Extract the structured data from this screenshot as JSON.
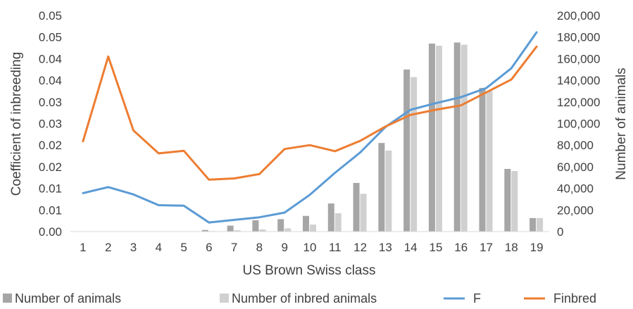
{
  "chart_data": {
    "type": "bar",
    "xlabel": "US Brown Swiss class",
    "ylabel_left": "Coefficient of inbreeding",
    "ylabel_right": "Number of animals",
    "categories": [
      "1",
      "2",
      "3",
      "4",
      "5",
      "6",
      "7",
      "8",
      "9",
      "10",
      "11",
      "12",
      "13",
      "14",
      "15",
      "16",
      "17",
      "18",
      "19"
    ],
    "left_axis": {
      "range": [
        0,
        0.05
      ],
      "tick_values": [
        0,
        0.005,
        0.01,
        0.015,
        0.02,
        0.025,
        0.03,
        0.035,
        0.04,
        0.045,
        0.05
      ],
      "tick_labels": [
        "0.00",
        "0.01",
        "0.01",
        "0.02",
        "0.02",
        "0.03",
        "0.03",
        "0.04",
        "0.04",
        "0.05",
        "0.05"
      ]
    },
    "right_axis": {
      "range": [
        0,
        200000
      ],
      "tick_values": [
        0,
        20000,
        40000,
        60000,
        80000,
        100000,
        120000,
        140000,
        160000,
        180000,
        200000
      ],
      "tick_labels": [
        "0",
        "20,000",
        "40,000",
        "60,000",
        "80,000",
        "100,000",
        "120,000",
        "140,000",
        "160,000",
        "180,000",
        "200,000"
      ]
    },
    "grid": false,
    "legend_position": "bottom",
    "series": [
      {
        "name": "Number of animals",
        "type": "bar",
        "axis": "right",
        "color": "#a6a6a6",
        "values": [
          300,
          0,
          0,
          200,
          200,
          1500,
          5500,
          10500,
          11500,
          14500,
          26000,
          45000,
          82000,
          150000,
          174000,
          175000,
          133000,
          58000,
          12500
        ]
      },
      {
        "name": "Number of inbred animals",
        "type": "bar",
        "axis": "right",
        "color": "#d0d0d0",
        "values": [
          100,
          0,
          0,
          100,
          100,
          500,
          1200,
          2000,
          3000,
          6500,
          17000,
          35000,
          75000,
          143000,
          172000,
          173000,
          130000,
          56000,
          12500
        ]
      },
      {
        "name": "F",
        "type": "line",
        "axis": "left",
        "color": "#5b9bd5",
        "values": [
          0.0089,
          0.0103,
          0.0086,
          0.0061,
          0.006,
          0.0021,
          0.0027,
          0.0033,
          0.0044,
          0.0085,
          0.0136,
          0.0183,
          0.0242,
          0.0282,
          0.0297,
          0.0311,
          0.0332,
          0.0378,
          0.0461
        ]
      },
      {
        "name": "Finbred",
        "type": "line",
        "axis": "left",
        "color": "#ed7d31",
        "values": [
          0.0209,
          0.0405,
          0.0234,
          0.0181,
          0.0187,
          0.012,
          0.0123,
          0.0133,
          0.0191,
          0.02,
          0.0186,
          0.021,
          0.0243,
          0.027,
          0.0282,
          0.0292,
          0.0322,
          0.0352,
          0.0428
        ]
      }
    ]
  }
}
